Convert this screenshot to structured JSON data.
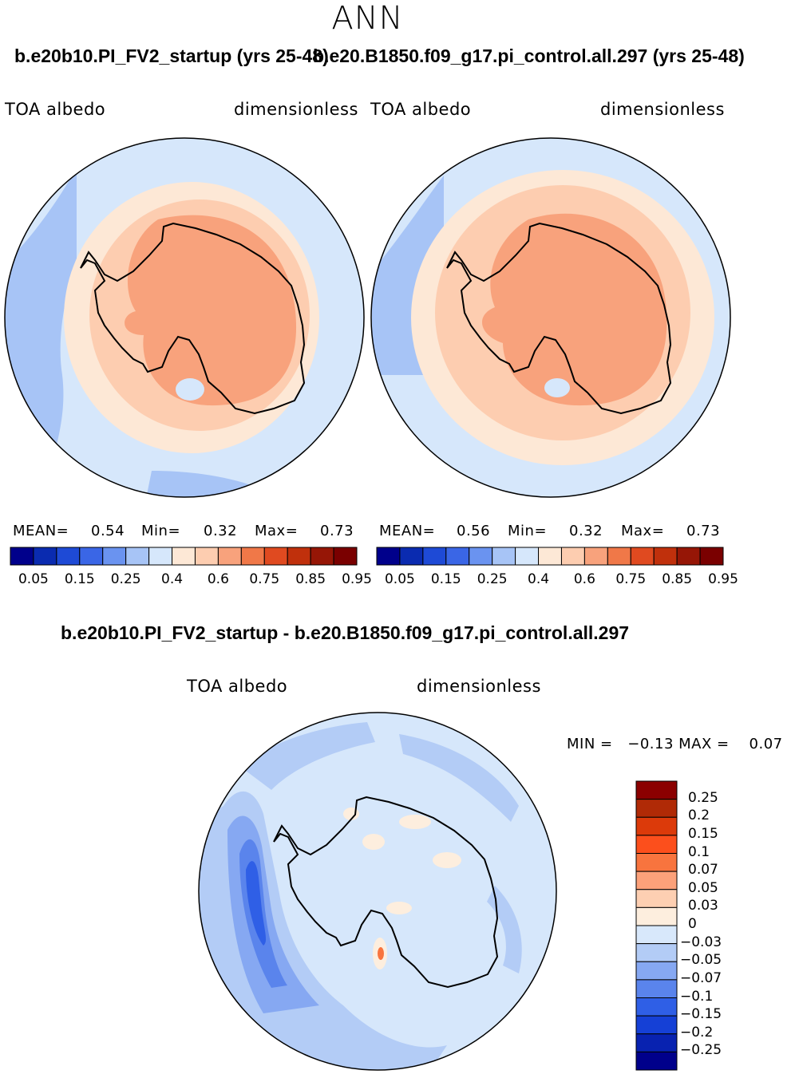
{
  "season": "ANN",
  "panels": [
    {
      "title": "b.e20b10.PI_FV2_startup (yrs 25-48)",
      "variable": "TOA  albedo",
      "units": "dimensionless",
      "mean_label": "MEAN=",
      "mean": "0.54",
      "min_label": "Min=",
      "min": "0.32",
      "max_label": "Max=",
      "max": "0.73"
    },
    {
      "title": "b.e20.B1850.f09_g17.pi_control.all.297 (yrs 25-48)",
      "variable": "TOA  albedo",
      "units": "dimensionless",
      "mean_label": "MEAN=",
      "mean": "0.56",
      "min_label": "Min=",
      "min": "0.32",
      "max_label": "Max=",
      "max": "0.73"
    }
  ],
  "colorbar": {
    "colors": [
      "#00008b",
      "#0a2bb0",
      "#1e4ad6",
      "#3a66e6",
      "#6a93f0",
      "#a7c4f6",
      "#d6e7fb",
      "#fde8d6",
      "#fdcdb0",
      "#f8a27c",
      "#f07848",
      "#e04a20",
      "#c0300c",
      "#961606",
      "#7a0000"
    ],
    "tick_labels": [
      "0.05",
      "0.15",
      "0.25",
      "0.4",
      "0.6",
      "0.75",
      "0.85",
      "0.95"
    ]
  },
  "difference": {
    "title": "b.e20b10.PI_FV2_startup - b.e20.B1850.f09_g17.pi_control.all.297",
    "variable": "TOA  albedo",
    "units": "dimensionless",
    "minmax": "MIN =   −0.13 MAX =    0.07",
    "colorbar": {
      "colors": [
        "#8b0000",
        "#b02a06",
        "#dc3a0a",
        "#fc4f1c",
        "#f8743e",
        "#fca17a",
        "#fdcfb2",
        "#fdeede",
        "#d8e8fb",
        "#b3ccf6",
        "#86a8f2",
        "#5a84ec",
        "#2f5fe6",
        "#1540d6",
        "#0822b0",
        "#00008b"
      ],
      "tick_labels": [
        "0.25",
        "0.2",
        "0.15",
        "0.1",
        "0.07",
        "0.05",
        "0.03",
        "0",
        "−0.03",
        "−0.05",
        "−0.07",
        "−0.1",
        "−0.15",
        "−0.2",
        "−0.25"
      ]
    }
  }
}
